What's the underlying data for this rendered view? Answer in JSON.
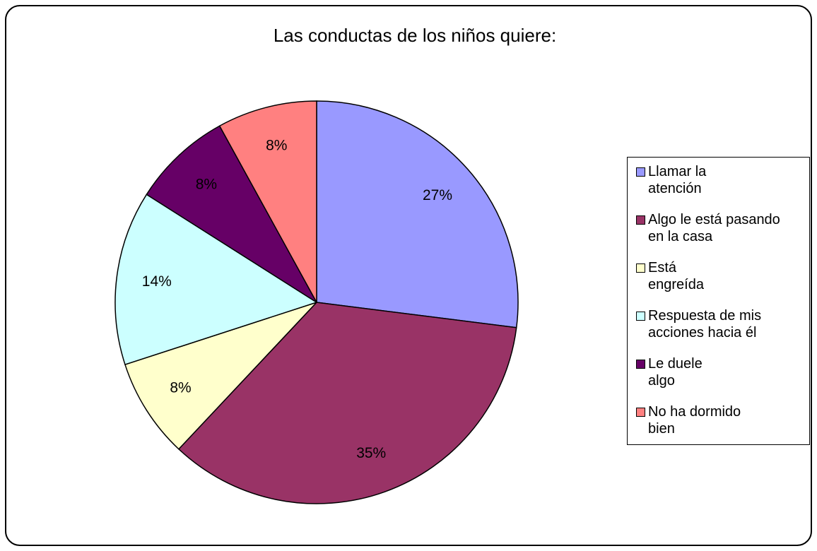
{
  "chart_data": {
    "type": "pie",
    "title": "Las conductas de los niños quiere:",
    "categories": [
      "Llamar la\natención",
      "Algo le está pasando\nen la casa",
      "Está\nengreída",
      "Respuesta de mis\nacciones hacia él",
      "Le duele\nalgo",
      "No ha dormido\nbien"
    ],
    "values": [
      27,
      35,
      8,
      14,
      8,
      8
    ],
    "colors": [
      "#9999ff",
      "#993366",
      "#ffffcc",
      "#ccffff",
      "#660066",
      "#ff8080"
    ],
    "legend": "right"
  }
}
